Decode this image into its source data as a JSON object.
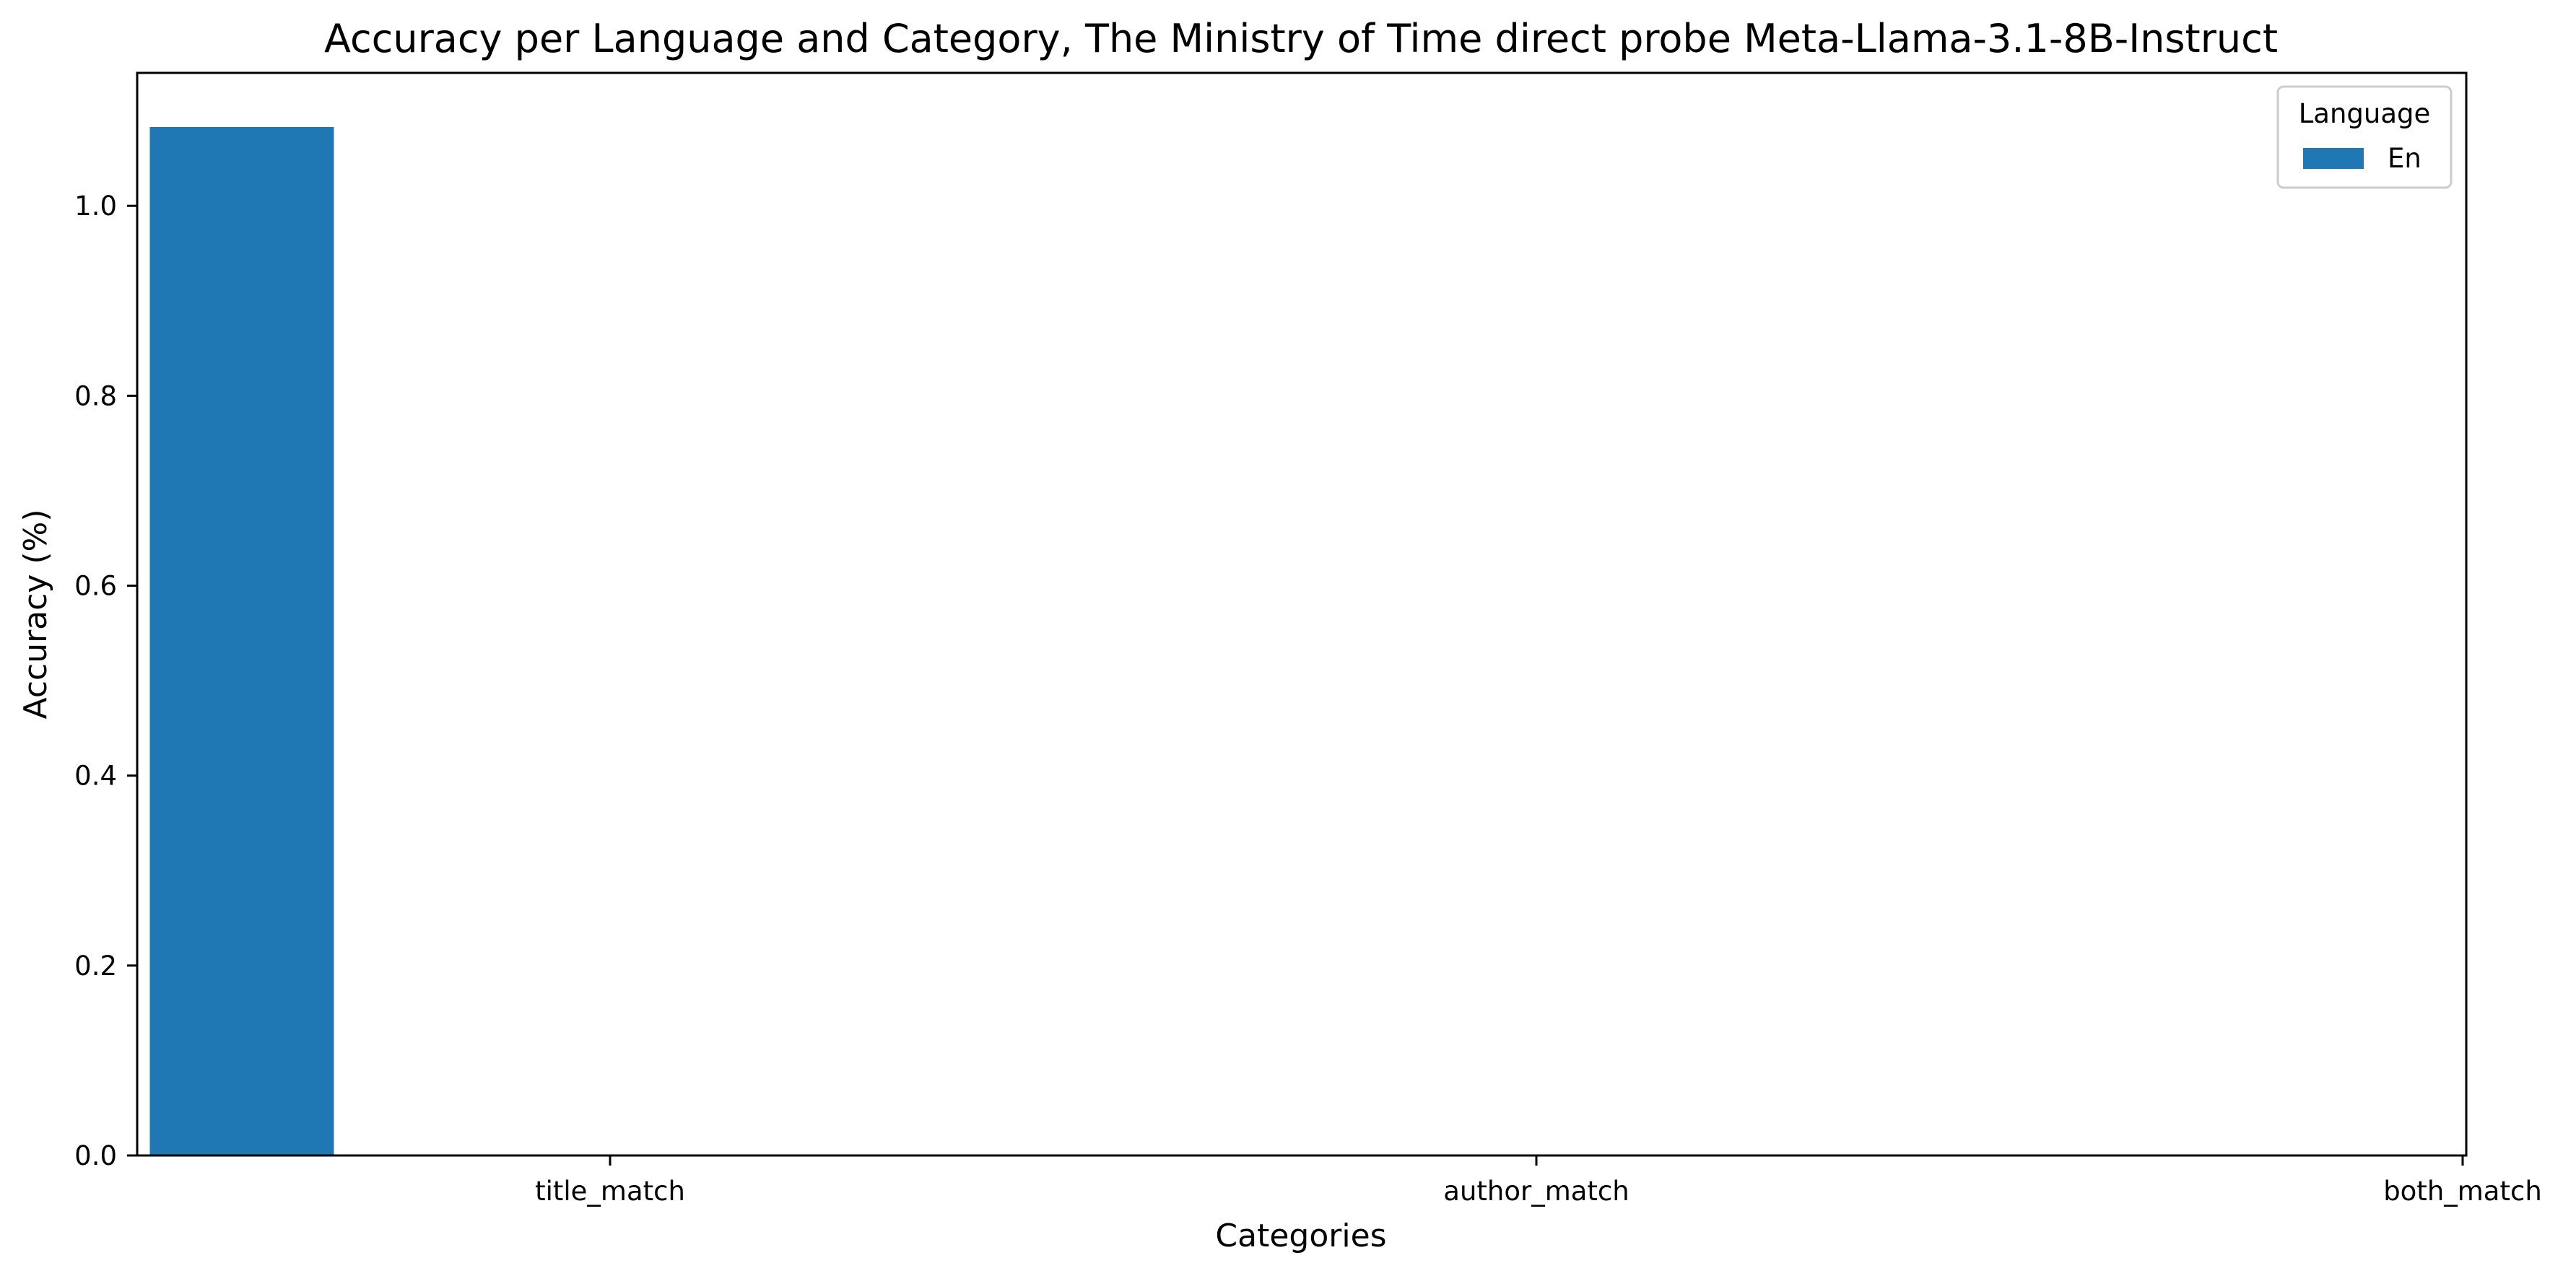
{
  "chart_data": {
    "type": "bar",
    "title": "Accuracy per Language and Category, The Ministry of Time direct probe Meta-Llama-3.1-8B-Instruct",
    "xlabel": "Categories",
    "ylabel": "Accuracy (%)",
    "categories": [
      "title_match",
      "author_match",
      "both_match"
    ],
    "series": [
      {
        "name": "En",
        "values": [
          1.083,
          0,
          0
        ],
        "color": "#1f77b4"
      }
    ],
    "ylim": [
      0,
      1.14
    ],
    "yticks": [
      0.0,
      0.2,
      0.4,
      0.6,
      0.8,
      1.0
    ],
    "ytick_labels": [
      "0.0",
      "0.2",
      "0.4",
      "0.6",
      "0.8",
      "1.0"
    ],
    "grid": false,
    "legend": {
      "title": "Language",
      "placement": "top-right"
    }
  }
}
